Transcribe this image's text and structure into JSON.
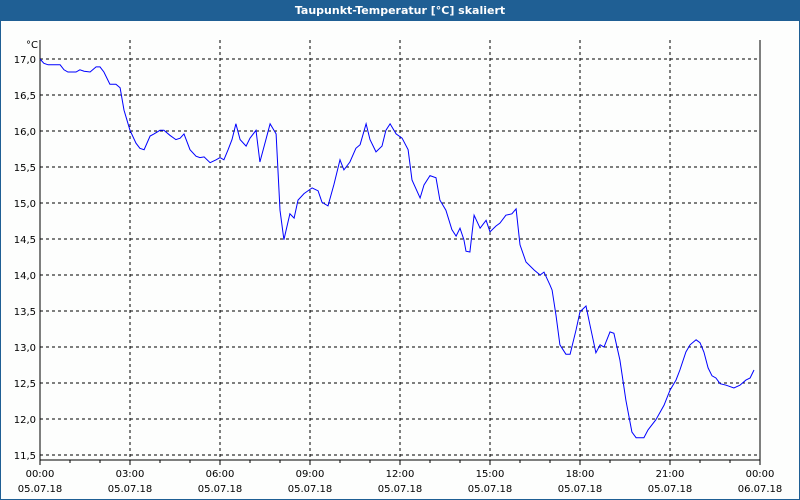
{
  "chart_data": {
    "type": "line",
    "title": "Taupunkt-Temperatur [°C] skaliert",
    "ylabel": "°C",
    "xlabel": "",
    "ylim": [
      11.5,
      17.0
    ],
    "xlim_hours": [
      0,
      24
    ],
    "grid": true,
    "line_color": "#0000ff",
    "y_ticks": [
      "11,5",
      "12,0",
      "12,5",
      "13,0",
      "13,5",
      "14,0",
      "14,5",
      "15,0",
      "15,5",
      "16,0",
      "16,5",
      "17,0"
    ],
    "x_ticks": [
      {
        "time": "00:00",
        "date": "05.07.18"
      },
      {
        "time": "03:00",
        "date": "05.07.18"
      },
      {
        "time": "06:00",
        "date": "05.07.18"
      },
      {
        "time": "09:00",
        "date": "05.07.18"
      },
      {
        "time": "12:00",
        "date": "05.07.18"
      },
      {
        "time": "15:00",
        "date": "05.07.18"
      },
      {
        "time": "18:00",
        "date": "05.07.18"
      },
      {
        "time": "21:00",
        "date": "05.07.18"
      },
      {
        "time": "00:00",
        "date": "06.07.18"
      }
    ],
    "series": [
      {
        "name": "Taupunkt",
        "x_hours": [
          0,
          0.13,
          0.27,
          0.67,
          0.8,
          0.93,
          1.2,
          1.33,
          1.47,
          1.67,
          1.87,
          2,
          2.13,
          2.33,
          2.53,
          2.67,
          2.8,
          3,
          3.2,
          3.33,
          3.47,
          3.67,
          3.8,
          4,
          4.13,
          4.33,
          4.53,
          4.67,
          4.8,
          5,
          5.2,
          5.33,
          5.47,
          5.67,
          5.87,
          6,
          6.13,
          6.27,
          6.4,
          6.53,
          6.67,
          6.87,
          7,
          7.2,
          7.33,
          7.53,
          7.67,
          7.87,
          8,
          8.13,
          8.33,
          8.47,
          8.6,
          8.8,
          9.07,
          9.27,
          9.4,
          9.6,
          9.8,
          10,
          10.13,
          10.33,
          10.53,
          10.67,
          10.87,
          11,
          11.2,
          11.4,
          11.53,
          11.67,
          11.87,
          12.07,
          12.27,
          12.4,
          12.67,
          12.8,
          13,
          13.2,
          13.33,
          13.53,
          13.73,
          13.87,
          14,
          14.13,
          14.2,
          14.33,
          14.47,
          14.67,
          14.87,
          15,
          15.2,
          15.33,
          15.53,
          15.73,
          15.87,
          16,
          16.2,
          16.47,
          16.67,
          16.8,
          17,
          17.07,
          17.2,
          17.33,
          17.53,
          17.67,
          17.87,
          18,
          18.2,
          18.33,
          18.53,
          18.67,
          18.8,
          19,
          19.13,
          19.33,
          19.53,
          19.73,
          19.87,
          20.13,
          20.27,
          20.53,
          20.8,
          21,
          21.2,
          21.33,
          21.53,
          21.67,
          21.87,
          22,
          22.13,
          22.27,
          22.4,
          22.53,
          22.67,
          22.87,
          23.13,
          23.33,
          23.53,
          23.67,
          23.8
        ],
        "values": [
          17.0,
          16.94,
          16.92,
          16.92,
          16.85,
          16.82,
          16.82,
          16.85,
          16.83,
          16.82,
          16.89,
          16.89,
          16.82,
          16.65,
          16.65,
          16.6,
          16.29,
          16.01,
          15.83,
          15.76,
          15.74,
          15.93,
          15.96,
          16.01,
          16.01,
          15.94,
          15.88,
          15.9,
          15.96,
          15.74,
          15.65,
          15.63,
          15.64,
          15.56,
          15.6,
          15.63,
          15.6,
          15.74,
          15.88,
          16.1,
          15.88,
          15.79,
          15.9,
          16.01,
          15.57,
          15.88,
          16.1,
          15.96,
          14.9,
          14.49,
          14.85,
          14.79,
          15.04,
          15.13,
          15.21,
          15.17,
          15.01,
          14.96,
          15.26,
          15.6,
          15.46,
          15.57,
          15.76,
          15.81,
          16.1,
          15.88,
          15.71,
          15.79,
          16.01,
          16.1,
          15.96,
          15.9,
          15.74,
          15.32,
          15.07,
          15.25,
          15.38,
          15.35,
          15.04,
          14.9,
          14.63,
          14.54,
          14.65,
          14.49,
          14.33,
          14.32,
          14.83,
          14.65,
          14.76,
          14.6,
          14.68,
          14.72,
          14.83,
          14.85,
          14.92,
          14.42,
          14.18,
          14.07,
          14.0,
          14.04,
          13.86,
          13.79,
          13.44,
          13.03,
          12.9,
          12.9,
          13.24,
          13.49,
          13.57,
          13.31,
          12.92,
          13.03,
          13.0,
          13.21,
          13.19,
          12.82,
          12.26,
          11.82,
          11.74,
          11.74,
          11.85,
          11.99,
          12.19,
          12.4,
          12.54,
          12.68,
          12.93,
          13.03,
          13.1,
          13.06,
          12.93,
          12.71,
          12.6,
          12.57,
          12.49,
          12.47,
          12.43,
          12.47,
          12.54,
          12.57,
          12.68
        ]
      }
    ]
  }
}
